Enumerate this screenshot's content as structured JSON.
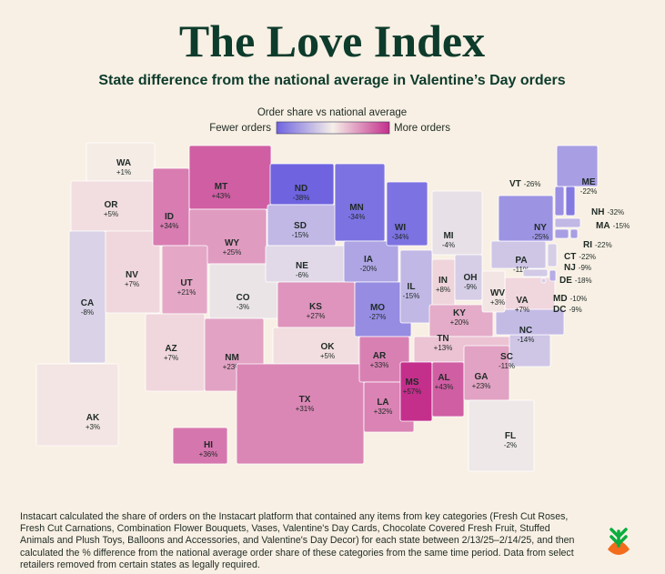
{
  "header": {
    "title": "The Love Index",
    "subtitle": "State difference from the national average in Valentine’s Day orders"
  },
  "legend": {
    "title": "Order share vs national average",
    "low_label": "Fewer orders",
    "high_label": "More orders"
  },
  "states": [
    {
      "abbr": "WA",
      "value": 1,
      "label": "+1%"
    },
    {
      "abbr": "OR",
      "value": 5,
      "label": "+5%"
    },
    {
      "abbr": "CA",
      "value": -8,
      "label": "-8%"
    },
    {
      "abbr": "NV",
      "value": 7,
      "label": "+7%"
    },
    {
      "abbr": "ID",
      "value": 34,
      "label": "+34%"
    },
    {
      "abbr": "MT",
      "value": 43,
      "label": "+43%"
    },
    {
      "abbr": "WY",
      "value": 25,
      "label": "+25%"
    },
    {
      "abbr": "UT",
      "value": 21,
      "label": "+21%"
    },
    {
      "abbr": "CO",
      "value": -3,
      "label": "-3%"
    },
    {
      "abbr": "AZ",
      "value": 7,
      "label": "+7%"
    },
    {
      "abbr": "NM",
      "value": 23,
      "label": "+23%"
    },
    {
      "abbr": "ND",
      "value": -38,
      "label": "-38%"
    },
    {
      "abbr": "SD",
      "value": -15,
      "label": "-15%"
    },
    {
      "abbr": "NE",
      "value": -6,
      "label": "-6%"
    },
    {
      "abbr": "KS",
      "value": 27,
      "label": "+27%"
    },
    {
      "abbr": "OK",
      "value": 5,
      "label": "+5%"
    },
    {
      "abbr": "TX",
      "value": 31,
      "label": "+31%"
    },
    {
      "abbr": "MN",
      "value": -34,
      "label": "-34%"
    },
    {
      "abbr": "IA",
      "value": -20,
      "label": "-20%"
    },
    {
      "abbr": "MO",
      "value": -27,
      "label": "-27%"
    },
    {
      "abbr": "AR",
      "value": 33,
      "label": "+33%"
    },
    {
      "abbr": "LA",
      "value": 32,
      "label": "+32%"
    },
    {
      "abbr": "WI",
      "value": -34,
      "label": "-34%"
    },
    {
      "abbr": "IL",
      "value": -15,
      "label": "-15%"
    },
    {
      "abbr": "MI",
      "value": -4,
      "label": "-4%"
    },
    {
      "abbr": "IN",
      "value": 8,
      "label": "+8%"
    },
    {
      "abbr": "OH",
      "value": -9,
      "label": "-9%"
    },
    {
      "abbr": "KY",
      "value": 20,
      "label": "+20%"
    },
    {
      "abbr": "TN",
      "value": 13,
      "label": "+13%"
    },
    {
      "abbr": "MS",
      "value": 57,
      "label": "+57%"
    },
    {
      "abbr": "AL",
      "value": 43,
      "label": "+43%"
    },
    {
      "abbr": "GA",
      "value": 23,
      "label": "+23%"
    },
    {
      "abbr": "FL",
      "value": -2,
      "label": "-2%"
    },
    {
      "abbr": "SC",
      "value": -11,
      "label": "-11%"
    },
    {
      "abbr": "NC",
      "value": -14,
      "label": "-14%"
    },
    {
      "abbr": "VA",
      "value": 7,
      "label": "+7%"
    },
    {
      "abbr": "WV",
      "value": 3,
      "label": "+3%"
    },
    {
      "abbr": "PA",
      "value": -11,
      "label": "-11%"
    },
    {
      "abbr": "NY",
      "value": -25,
      "label": "-25%"
    },
    {
      "abbr": "VT",
      "value": -26,
      "label": "-26%"
    },
    {
      "abbr": "NH",
      "value": -32,
      "label": "-32%"
    },
    {
      "abbr": "ME",
      "value": -22,
      "label": "-22%"
    },
    {
      "abbr": "MA",
      "value": -15,
      "label": "-15%"
    },
    {
      "abbr": "RI",
      "value": -22,
      "label": "-22%"
    },
    {
      "abbr": "CT",
      "value": -22,
      "label": "-22%"
    },
    {
      "abbr": "NJ",
      "value": -9,
      "label": "-9%"
    },
    {
      "abbr": "DE",
      "value": -18,
      "label": "-18%"
    },
    {
      "abbr": "MD",
      "value": -10,
      "label": "-10%"
    },
    {
      "abbr": "DC",
      "value": -9,
      "label": "-9%"
    },
    {
      "abbr": "AK",
      "value": 3,
      "label": "+3%"
    },
    {
      "abbr": "HI",
      "value": 36,
      "label": "+36%"
    }
  ],
  "footnote": "Instacart calculated the share of orders on the Instacart platform that contained any items from key categories (Fresh Cut Roses, Fresh Cut Carnations, Combination Flower Bouquets, Vases, Valentine's Day Cards, Chocolate Covered Fresh Fruit, Stuffed Animals and Plush Toys, Balloons and Accessories, and Valentine's Day Decor) for each state between 2/13/25–2/14/25, and then calculated the % difference from the national average order share of these categories from the same time period. Data from select retailers removed from certain states as legally required."
}
